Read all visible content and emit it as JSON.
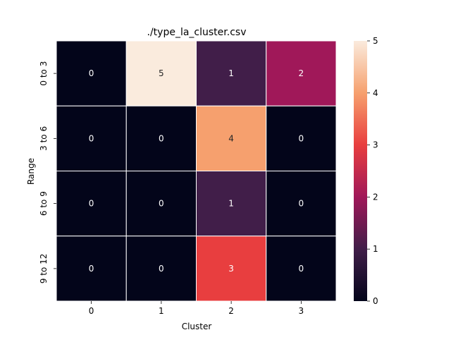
{
  "chart_data": {
    "type": "heatmap",
    "title": "./type_la_cluster.csv",
    "xlabel": "Cluster",
    "ylabel": "Range",
    "x_categories": [
      "0",
      "1",
      "2",
      "3"
    ],
    "y_categories": [
      "0 to 3",
      "3 to 6",
      "6 to 9",
      "9 to 12"
    ],
    "values": [
      [
        0,
        5,
        1,
        2
      ],
      [
        0,
        0,
        4,
        0
      ],
      [
        0,
        0,
        1,
        0
      ],
      [
        0,
        0,
        3,
        0
      ]
    ],
    "annotations": true,
    "colorbar": {
      "min": 0,
      "max": 5,
      "ticks": [
        "0",
        "1",
        "2",
        "3",
        "4",
        "5"
      ],
      "colormap": "rocket"
    },
    "cell_separator_color": "#ffffff"
  }
}
